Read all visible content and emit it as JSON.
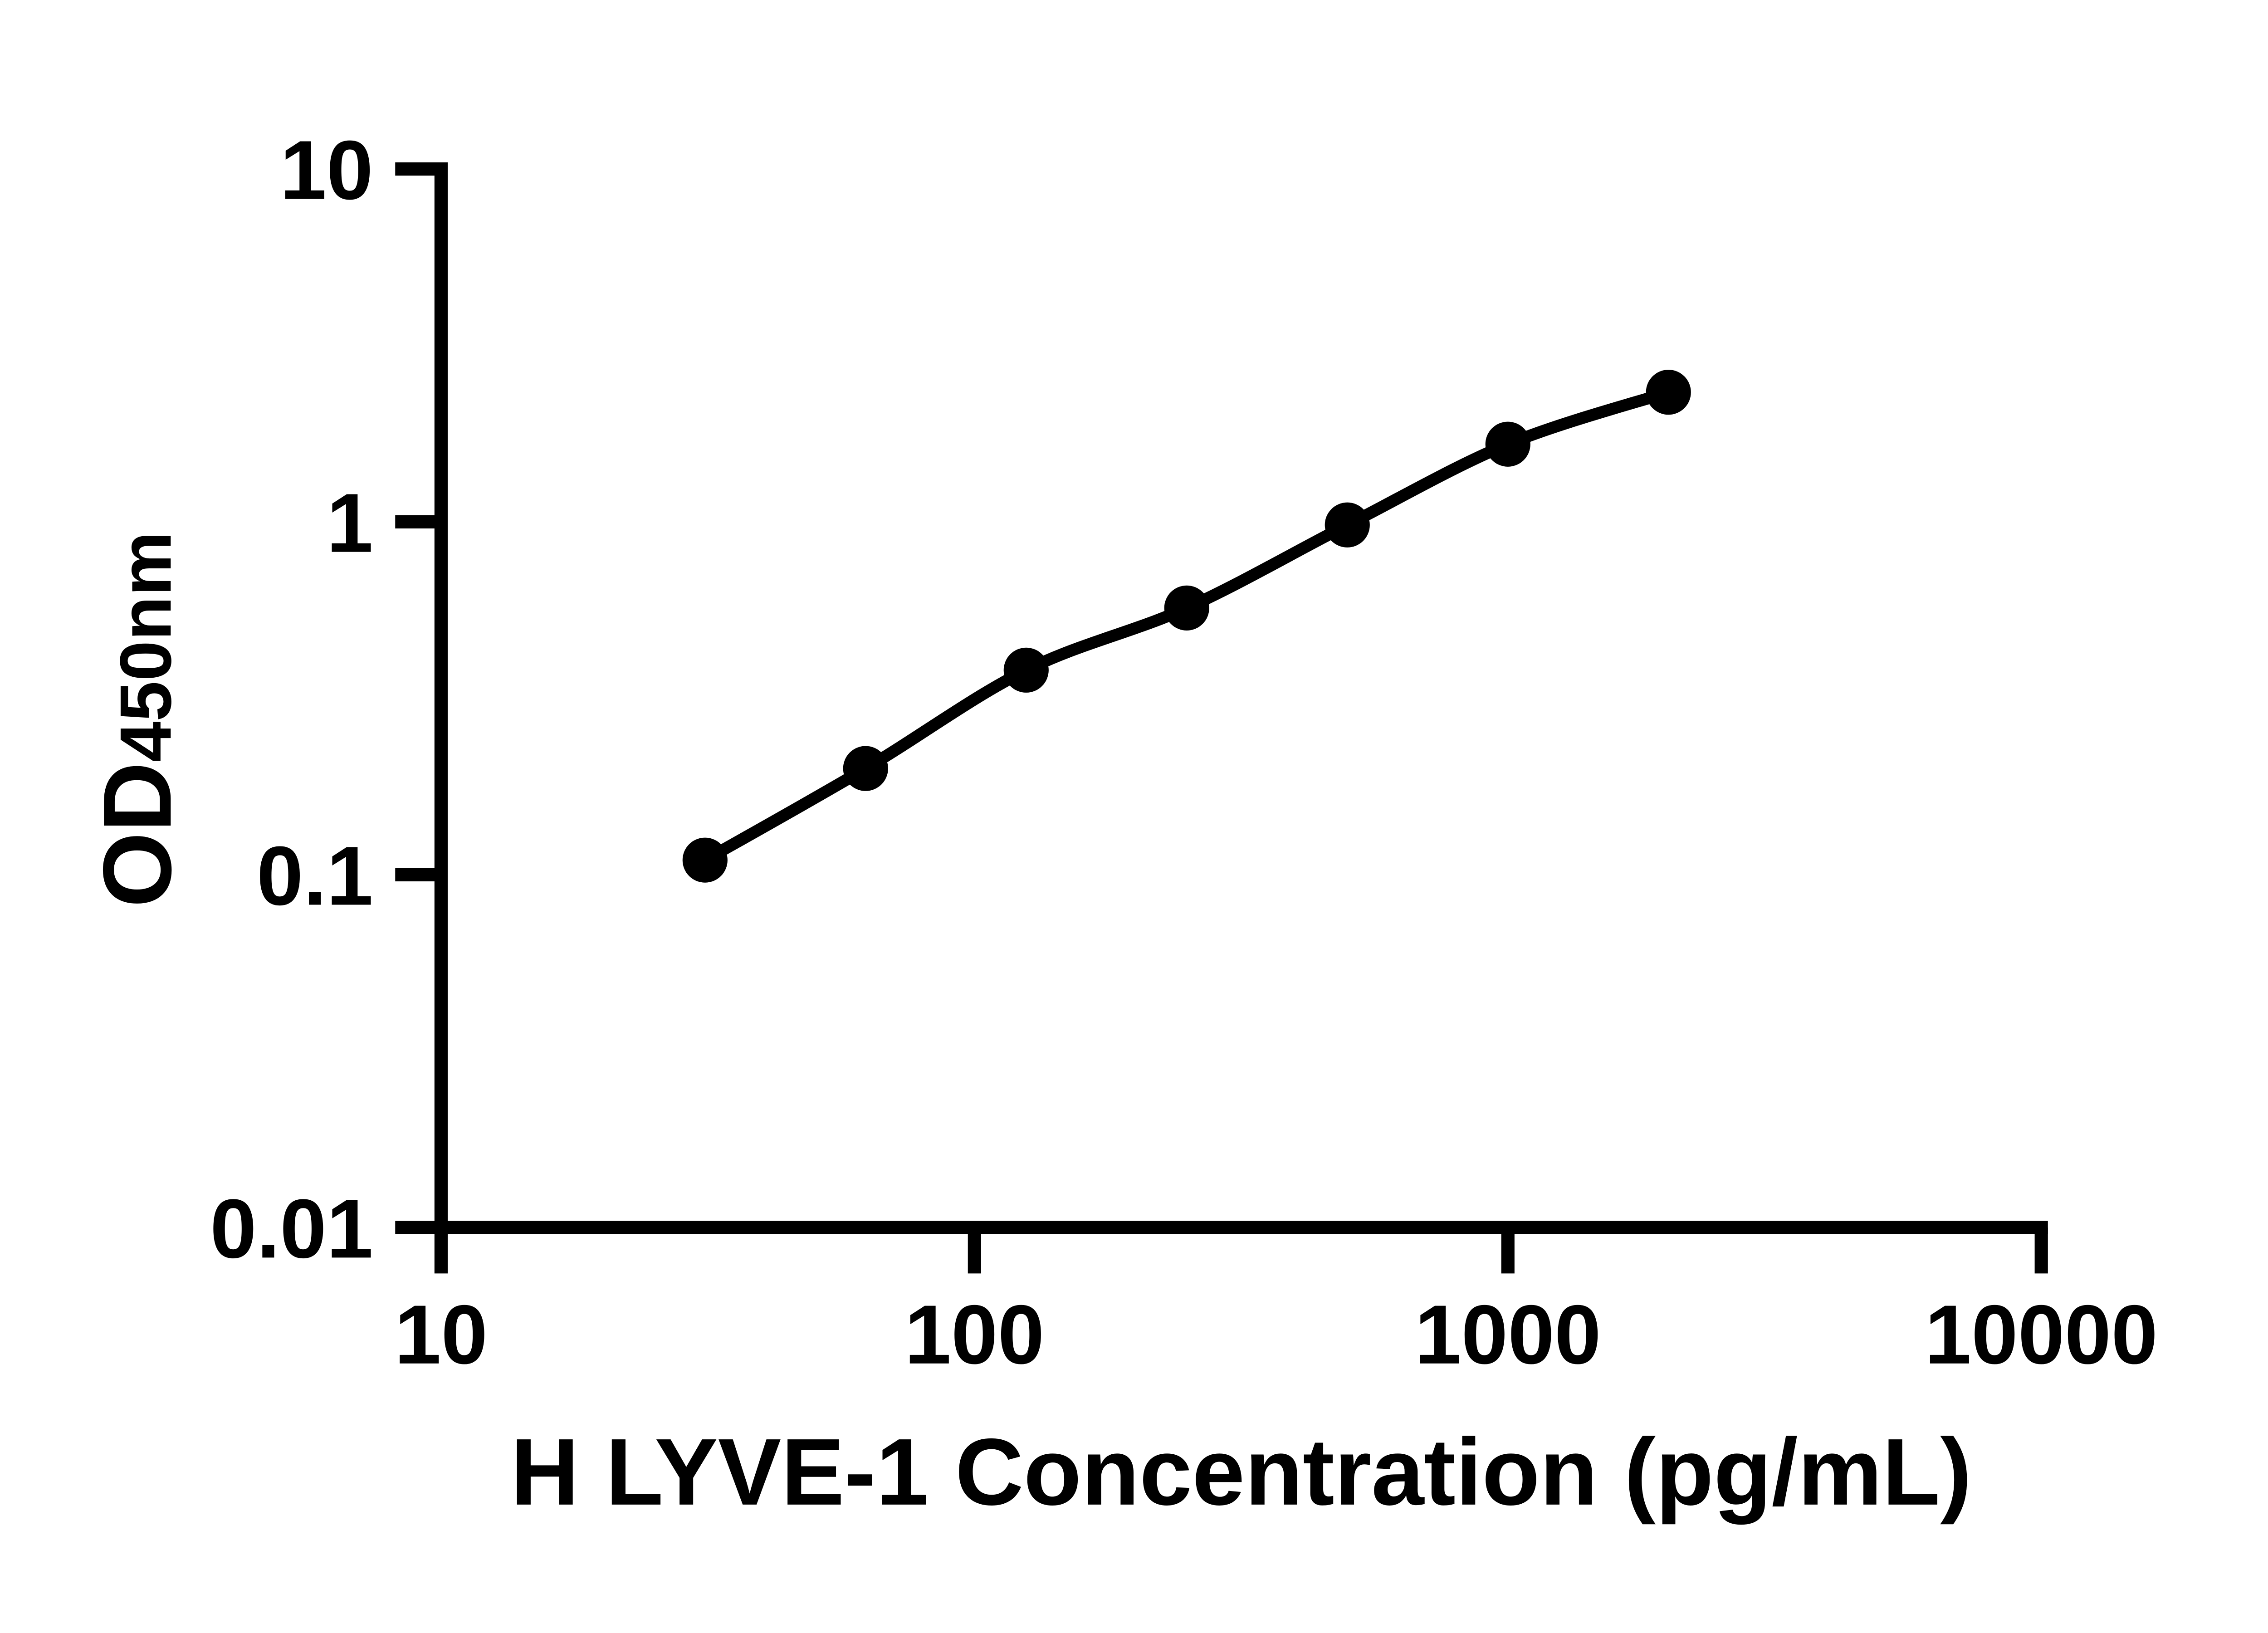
{
  "chart_data": {
    "type": "line",
    "title": "",
    "xlabel": "H LYVE-1 Concentration (pg/mL)",
    "ylabel": "OD",
    "ylabel_sub": "450nm",
    "x_scale": "log10",
    "y_scale": "log10",
    "xlim": [
      10,
      10000
    ],
    "ylim": [
      0.01,
      10
    ],
    "grid": false,
    "legend": null,
    "x": [
      31.25,
      62.5,
      125,
      250,
      500,
      1000,
      2000
    ],
    "y": [
      0.11,
      0.2,
      0.38,
      0.57,
      0.98,
      1.66,
      2.33
    ],
    "x_ticks": [
      {
        "value": 10,
        "label": "10"
      },
      {
        "value": 100,
        "label": "100"
      },
      {
        "value": 1000,
        "label": "1000"
      },
      {
        "value": 10000,
        "label": "10000"
      }
    ],
    "y_ticks": [
      {
        "value": 0.01,
        "label": "0.01"
      },
      {
        "value": 0.1,
        "label": "0.1"
      },
      {
        "value": 1,
        "label": "1"
      },
      {
        "value": 10,
        "label": "10"
      }
    ],
    "line_color": "#000000",
    "marker_color": "#000000",
    "axis_color": "#000000"
  }
}
